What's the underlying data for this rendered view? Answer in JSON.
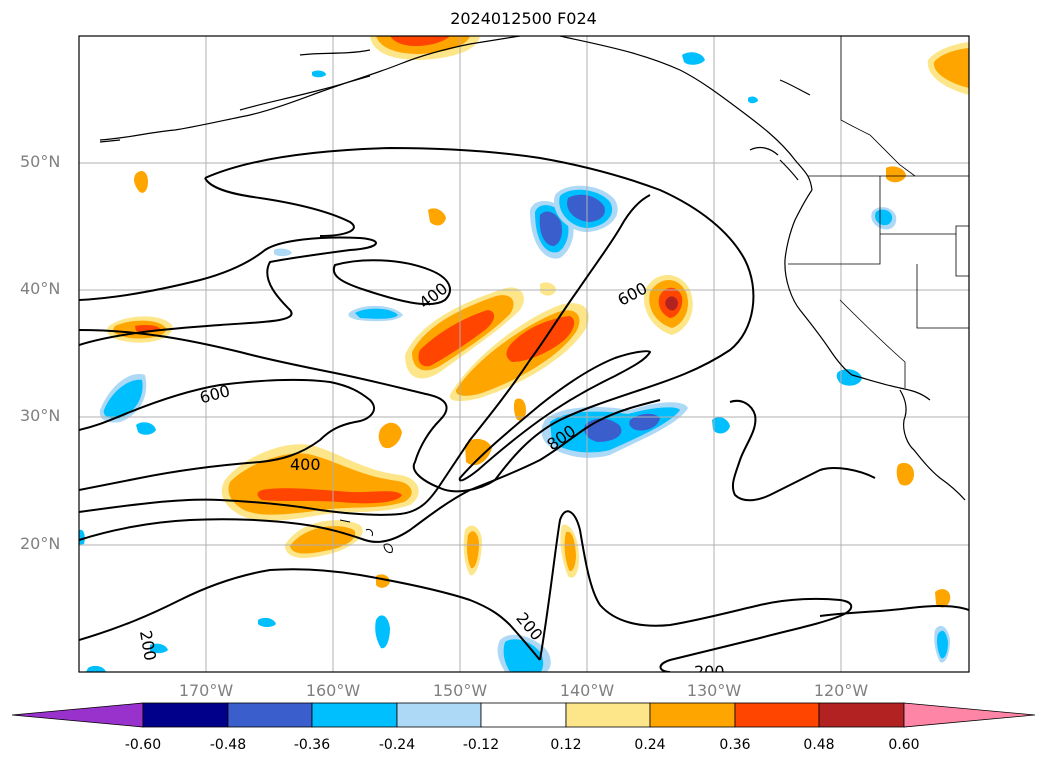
{
  "title": "2024012500 F024",
  "lat_labels": [
    "50°N",
    "40°N",
    "30°N",
    "20°N"
  ],
  "lon_labels": [
    "170°W",
    "160°W",
    "150°W",
    "140°W",
    "130°W",
    "120°W"
  ],
  "contour_labels": [
    "400",
    "600",
    "600",
    "800",
    "400",
    "200",
    "200",
    "200"
  ],
  "colorbar": {
    "ticks": [
      "-0.60",
      "-0.48",
      "-0.36",
      "-0.24",
      "-0.12",
      "0.12",
      "0.24",
      "0.36",
      "0.48",
      "0.60"
    ],
    "colors": [
      "#9932cc",
      "#00008b",
      "#3a5fcd",
      "#00bfff",
      "#add8f6",
      "#ffffff",
      "#fde68a",
      "#ffa500",
      "#ff4500",
      "#b22222",
      "#ff85a6"
    ]
  }
}
